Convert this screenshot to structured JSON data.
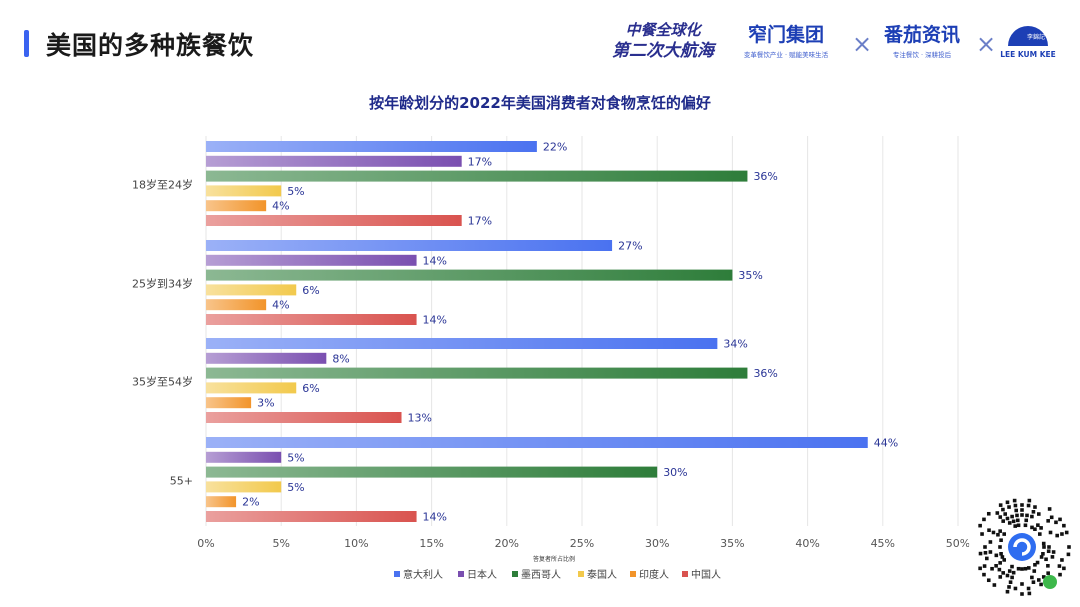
{
  "header": {
    "title": "美国的多种族餐饮",
    "accent_color": "#3a63f0"
  },
  "brands": {
    "slogan_line1": "中餐全球化",
    "slogan_line2": "第二次大航海",
    "brand1_name": "窄门集团",
    "brand1_tagline": "变革餐饮产业 · 赋能美味生活",
    "brand2_name": "番茄资讯",
    "brand2_tagline": "专注餐饮 · 深耕投后",
    "brand3_name": "LEE KUM KEE",
    "brand3_mark": "李錦記",
    "separator": "×"
  },
  "chart_data": {
    "type": "bar",
    "orientation": "horizontal",
    "title": "按年龄划分的2022年美国消费者对食物烹饪的偏好",
    "xlabel": "答复者所占比例",
    "ylabel": "",
    "xlim": [
      0,
      50
    ],
    "x_ticks": [
      "0%",
      "5%",
      "10%",
      "15%",
      "20%",
      "25%",
      "30%",
      "35%",
      "40%",
      "45%",
      "50%"
    ],
    "categories": [
      "18岁至24岁",
      "25岁到34岁",
      "35岁至54岁",
      "55+"
    ],
    "series": [
      {
        "name": "意大利人",
        "color": "#4a72f0",
        "values": [
          22,
          27,
          34,
          44
        ]
      },
      {
        "name": "日本人",
        "color": "#7a4fb0",
        "values": [
          17,
          14,
          8,
          5
        ]
      },
      {
        "name": "墨西哥人",
        "color": "#2e7d3a",
        "values": [
          36,
          35,
          36,
          30
        ]
      },
      {
        "name": "泰国人",
        "color": "#f2c94c",
        "values": [
          5,
          6,
          6,
          5
        ]
      },
      {
        "name": "印度人",
        "color": "#f2942a",
        "values": [
          4,
          4,
          3,
          2
        ]
      },
      {
        "name": "中国人",
        "color": "#d9534f",
        "values": [
          17,
          14,
          13,
          14
        ]
      }
    ],
    "value_suffix": "%",
    "grid": true,
    "legend_position": "bottom"
  }
}
